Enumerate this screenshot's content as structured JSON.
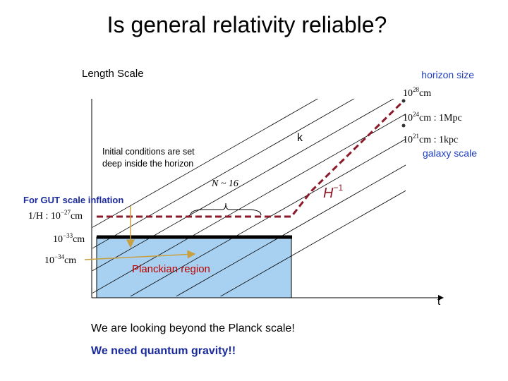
{
  "title": "Is general relativity reliable?",
  "axis": {
    "y_label": "Length Scale",
    "x_label": "t"
  },
  "right_labels": {
    "horizon": "horizon size",
    "galaxy": "galaxy scale",
    "scale_28": {
      "base": "10",
      "exp": "28",
      "unit": "cm"
    },
    "scale_24": {
      "base": "10",
      "exp": "24",
      "unit": "cm : 1Mpc"
    },
    "scale_21": {
      "base": "10",
      "exp": "21",
      "unit": "cm : 1kpc"
    }
  },
  "k_label": "k",
  "initial_conditions": [
    "Initial conditions are set",
    "deep inside the horizon"
  ],
  "efolds": "N ~ 16",
  "hubble": {
    "base": "H",
    "exp": "−1"
  },
  "gut_label": "For GUT scale inflation",
  "left_labels": {
    "hubble_gut": {
      "base": "1/H : 10",
      "exp": "−27",
      "unit": "cm"
    },
    "scale_33": {
      "base": "10",
      "exp": "−33",
      "unit": "cm"
    },
    "scale_34": {
      "base": "10",
      "exp": "−34",
      "unit": "cm"
    }
  },
  "planckian": "Planckian region",
  "footer": {
    "line1": "We are looking beyond the Planck scale!",
    "line2": "We need quantum gravity!!"
  }
}
